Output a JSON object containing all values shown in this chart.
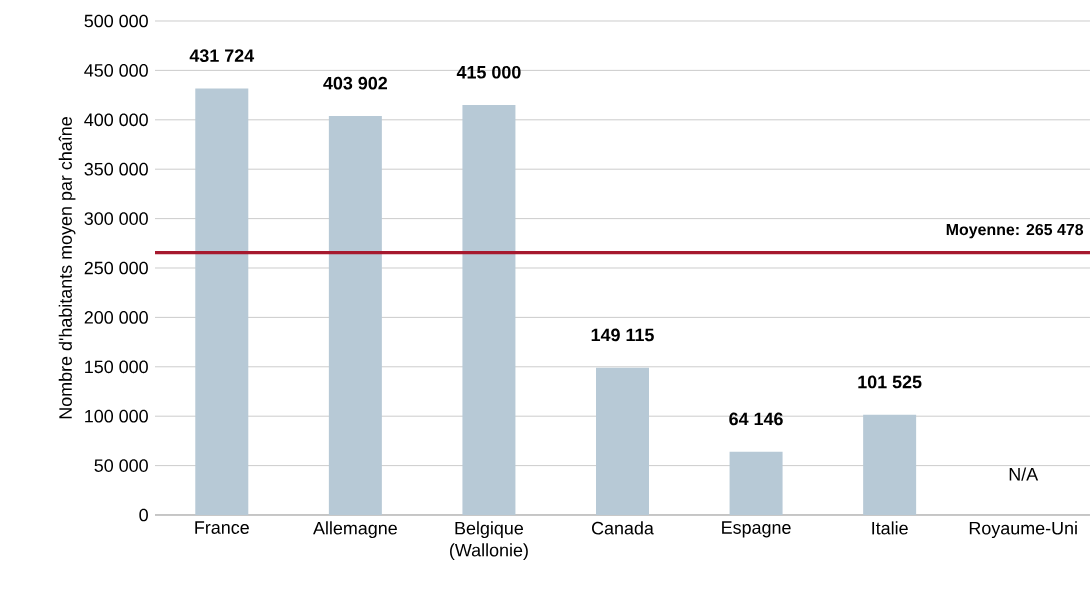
{
  "chart_data": {
    "type": "bar",
    "ylabel": "Nombre d'habitants moyen par chaîne",
    "categories": [
      "France",
      "Allemagne",
      "Belgique (Wallonie)",
      "Canada",
      "Espagne",
      "Italie",
      "Royaume-Uni"
    ],
    "values": [
      431724,
      403902,
      415000,
      149115,
      64146,
      101525,
      null
    ],
    "value_labels": [
      "431 724",
      "403 902",
      "415 000",
      "149 115",
      "64 146",
      "101 525",
      "N/A"
    ],
    "color": "#b7c9d6",
    "ylim": [
      0,
      500000
    ],
    "yticks": [
      {
        "value": 0,
        "label": "0"
      },
      {
        "value": 50000,
        "label": "50 000"
      },
      {
        "value": 100000,
        "label": "100 000"
      },
      {
        "value": 150000,
        "label": "150 000"
      },
      {
        "value": 200000,
        "label": "200 000"
      },
      {
        "value": 250000,
        "label": "250 000"
      },
      {
        "value": 300000,
        "label": "300 000"
      },
      {
        "value": 350000,
        "label": "350 000"
      },
      {
        "value": 400000,
        "label": "400 000"
      },
      {
        "value": 450000,
        "label": "450 000"
      },
      {
        "value": 500000,
        "label": "500 000"
      }
    ],
    "grid": "y",
    "ref_lines": [
      {
        "axis": "y",
        "value": 265478,
        "label": "Moyenne: 265 478",
        "color": "#a6192e"
      }
    ]
  }
}
